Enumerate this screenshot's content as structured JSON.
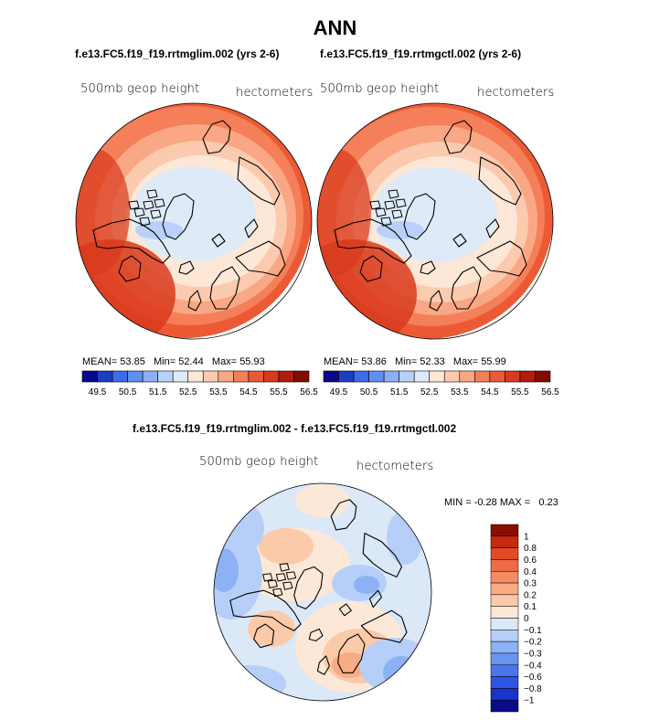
{
  "colors": {
    "palette": [
      "#08088c",
      "#1c3fc2",
      "#3b6cec",
      "#5f8ff2",
      "#8eaef7",
      "#b9d0fa",
      "#dfeaf8",
      "#fde7d6",
      "#fccaae",
      "#f9a784",
      "#f47f59",
      "#ec5a35",
      "#d9391c",
      "#b01d0b",
      "#830b02"
    ],
    "diff_palette": [
      "#0b0b8a",
      "#1a33c8",
      "#2e55e6",
      "#4a76ec",
      "#6994f0",
      "#8cb2f5",
      "#b6cff8",
      "#dbe8f8",
      "#fde8d8",
      "#fbcaa9",
      "#f9ab83",
      "#f58b62",
      "#ef6a42",
      "#e44a25",
      "#c62a10",
      "#8a0d00"
    ],
    "coast": "#000000"
  },
  "figure": {
    "title": "ANN",
    "field_label": "500mb geop height",
    "units": "hectometers",
    "diff_title": "f.e13.FC5.f19_f19.rrtmglim.002 - f.e13.FC5.f19_f19.rrtmgctl.002"
  },
  "chart_data": [
    {
      "type": "heatmap",
      "projection": "north-polar-stereographic",
      "title": "f.e13.FC5.f19_f19.rrtmglim.002 (yrs 2-6)",
      "variable": "500mb geop height",
      "units": "hectometers",
      "stats": {
        "mean_label": "MEAN=",
        "mean": "53.85",
        "min_label": "Min=",
        "min": "52.44",
        "max_label": "Max=",
        "max": "55.93"
      },
      "colorbar": {
        "orientation": "horizontal",
        "levels": [
          49.5,
          50,
          50.5,
          51,
          51.5,
          52,
          52.5,
          53,
          53.5,
          54,
          54.5,
          55,
          55.5,
          56,
          56.5
        ],
        "tick_labels": [
          "49.5",
          "50.5",
          "51.5",
          "52.5",
          "53.5",
          "54.5",
          "55.5",
          "56.5"
        ]
      }
    },
    {
      "type": "heatmap",
      "projection": "north-polar-stereographic",
      "title": "f.e13.FC5.f19_f19.rrtmgctl.002 (yrs 2-6)",
      "variable": "500mb geop height",
      "units": "hectometers",
      "stats": {
        "mean_label": "MEAN=",
        "mean": "53.86",
        "min_label": "Min=",
        "min": "52.33",
        "max_label": "Max=",
        "max": "55.99"
      },
      "colorbar": {
        "orientation": "horizontal",
        "levels": [
          49.5,
          50,
          50.5,
          51,
          51.5,
          52,
          52.5,
          53,
          53.5,
          54,
          54.5,
          55,
          55.5,
          56,
          56.5
        ],
        "tick_labels": [
          "49.5",
          "50.5",
          "51.5",
          "52.5",
          "53.5",
          "54.5",
          "55.5",
          "56.5"
        ]
      }
    },
    {
      "type": "heatmap",
      "projection": "north-polar-stereographic",
      "title": "f.e13.FC5.f19_f19.rrtmglim.002 - f.e13.FC5.f19_f19.rrtmgctl.002",
      "variable": "500mb geop height",
      "units": "hectometers",
      "stats": {
        "min_label": "MIN =",
        "min": "-0.28",
        "max_label": "MAX =",
        "max": "0.23"
      },
      "colorbar": {
        "orientation": "vertical",
        "tick_labels": [
          "1",
          "0.8",
          "0.6",
          "0.4",
          "0.3",
          "0.2",
          "0.1",
          "0",
          "−0.1",
          "−0.2",
          "−0.3",
          "−0.4",
          "−0.6",
          "−0.8",
          "−1"
        ]
      }
    }
  ]
}
